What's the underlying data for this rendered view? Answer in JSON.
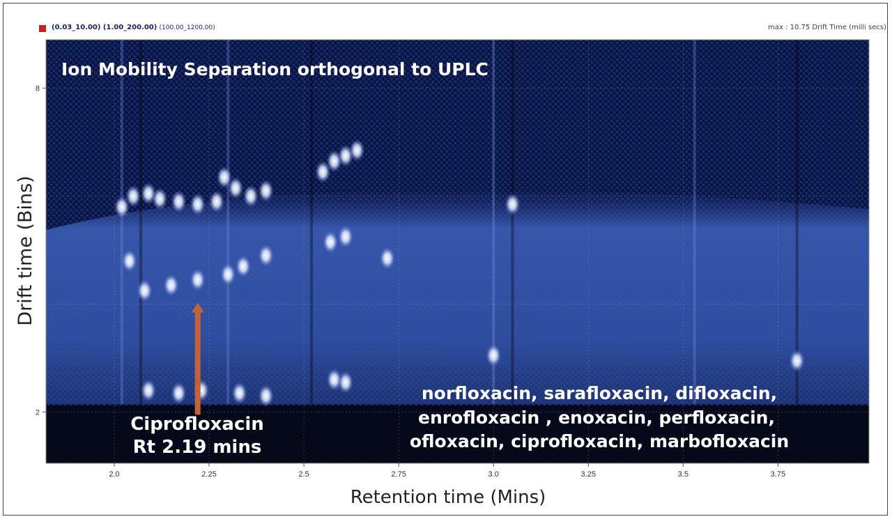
{
  "header": {
    "params_bold": "(0.03_10.00) (1.00_200.00)",
    "params_small": "(100.00_1200.00)",
    "max_readout": "max : 10.75 Drift Time (milli secs)",
    "marker_color": "#cc1f1f"
  },
  "chart_data": {
    "type": "heatmap",
    "title": "Ion Mobility Separation orthogonal to UPLC",
    "xlabel": "Retention time (Mins)",
    "ylabel": "Drift time (Bins)",
    "x_ticks": [
      "2.0",
      "2.25",
      "2.5",
      "2.75",
      "3.0",
      "3.25",
      "3.5",
      "3.75"
    ],
    "x_tick_values": [
      2.0,
      2.25,
      2.5,
      2.75,
      3.0,
      3.25,
      3.5,
      3.75
    ],
    "y_ticks": [
      "2",
      "8"
    ],
    "y_tick_values": [
      2,
      8
    ],
    "xlim": [
      1.82,
      3.99
    ],
    "ylim": [
      1.05,
      8.9
    ],
    "grid": true,
    "colors": {
      "background": "#0b1a4a",
      "band": "#3c5fb8",
      "peak": "#ffffff",
      "arrow": "#c2623a"
    },
    "peaks": [
      {
        "x": 2.02,
        "y": 5.8
      },
      {
        "x": 2.05,
        "y": 6.0
      },
      {
        "x": 2.09,
        "y": 6.05
      },
      {
        "x": 2.12,
        "y": 5.95
      },
      {
        "x": 2.17,
        "y": 5.9
      },
      {
        "x": 2.22,
        "y": 5.85
      },
      {
        "x": 2.27,
        "y": 5.9
      },
      {
        "x": 2.29,
        "y": 6.35
      },
      {
        "x": 2.32,
        "y": 6.15
      },
      {
        "x": 2.36,
        "y": 6.0
      },
      {
        "x": 2.4,
        "y": 6.1
      },
      {
        "x": 2.04,
        "y": 4.8
      },
      {
        "x": 2.08,
        "y": 4.25
      },
      {
        "x": 2.15,
        "y": 4.35
      },
      {
        "x": 2.22,
        "y": 4.45
      },
      {
        "x": 2.3,
        "y": 4.55
      },
      {
        "x": 2.34,
        "y": 4.7
      },
      {
        "x": 2.4,
        "y": 4.9
      },
      {
        "x": 2.55,
        "y": 6.45
      },
      {
        "x": 2.58,
        "y": 6.65
      },
      {
        "x": 2.61,
        "y": 6.75
      },
      {
        "x": 2.64,
        "y": 6.85
      },
      {
        "x": 2.57,
        "y": 5.15
      },
      {
        "x": 2.61,
        "y": 5.25
      },
      {
        "x": 2.72,
        "y": 4.85
      },
      {
        "x": 2.58,
        "y": 2.6
      },
      {
        "x": 2.61,
        "y": 2.55
      },
      {
        "x": 2.09,
        "y": 2.4
      },
      {
        "x": 2.17,
        "y": 2.35
      },
      {
        "x": 2.23,
        "y": 2.4
      },
      {
        "x": 2.33,
        "y": 2.35
      },
      {
        "x": 2.4,
        "y": 2.3
      },
      {
        "x": 3.05,
        "y": 5.85
      },
      {
        "x": 3.0,
        "y": 3.05
      },
      {
        "x": 3.8,
        "y": 2.95
      }
    ],
    "annotations": [
      {
        "text": "Ciprofloxacin",
        "line": 1
      },
      {
        "text": "Rt 2.19 mins",
        "line": 2
      },
      {
        "text": "norfloxacin,  sarafloxacin, difloxacin,",
        "line": 3
      },
      {
        "text": "enrofloxacin , enoxacin, perfloxacin,",
        "line": 4
      },
      {
        "text": "ofloxacin, ciprofloxacin, marbofloxacin",
        "line": 5
      }
    ],
    "arrow": {
      "x": 2.22,
      "y_from": 1.95,
      "y_to": 4.0
    }
  }
}
